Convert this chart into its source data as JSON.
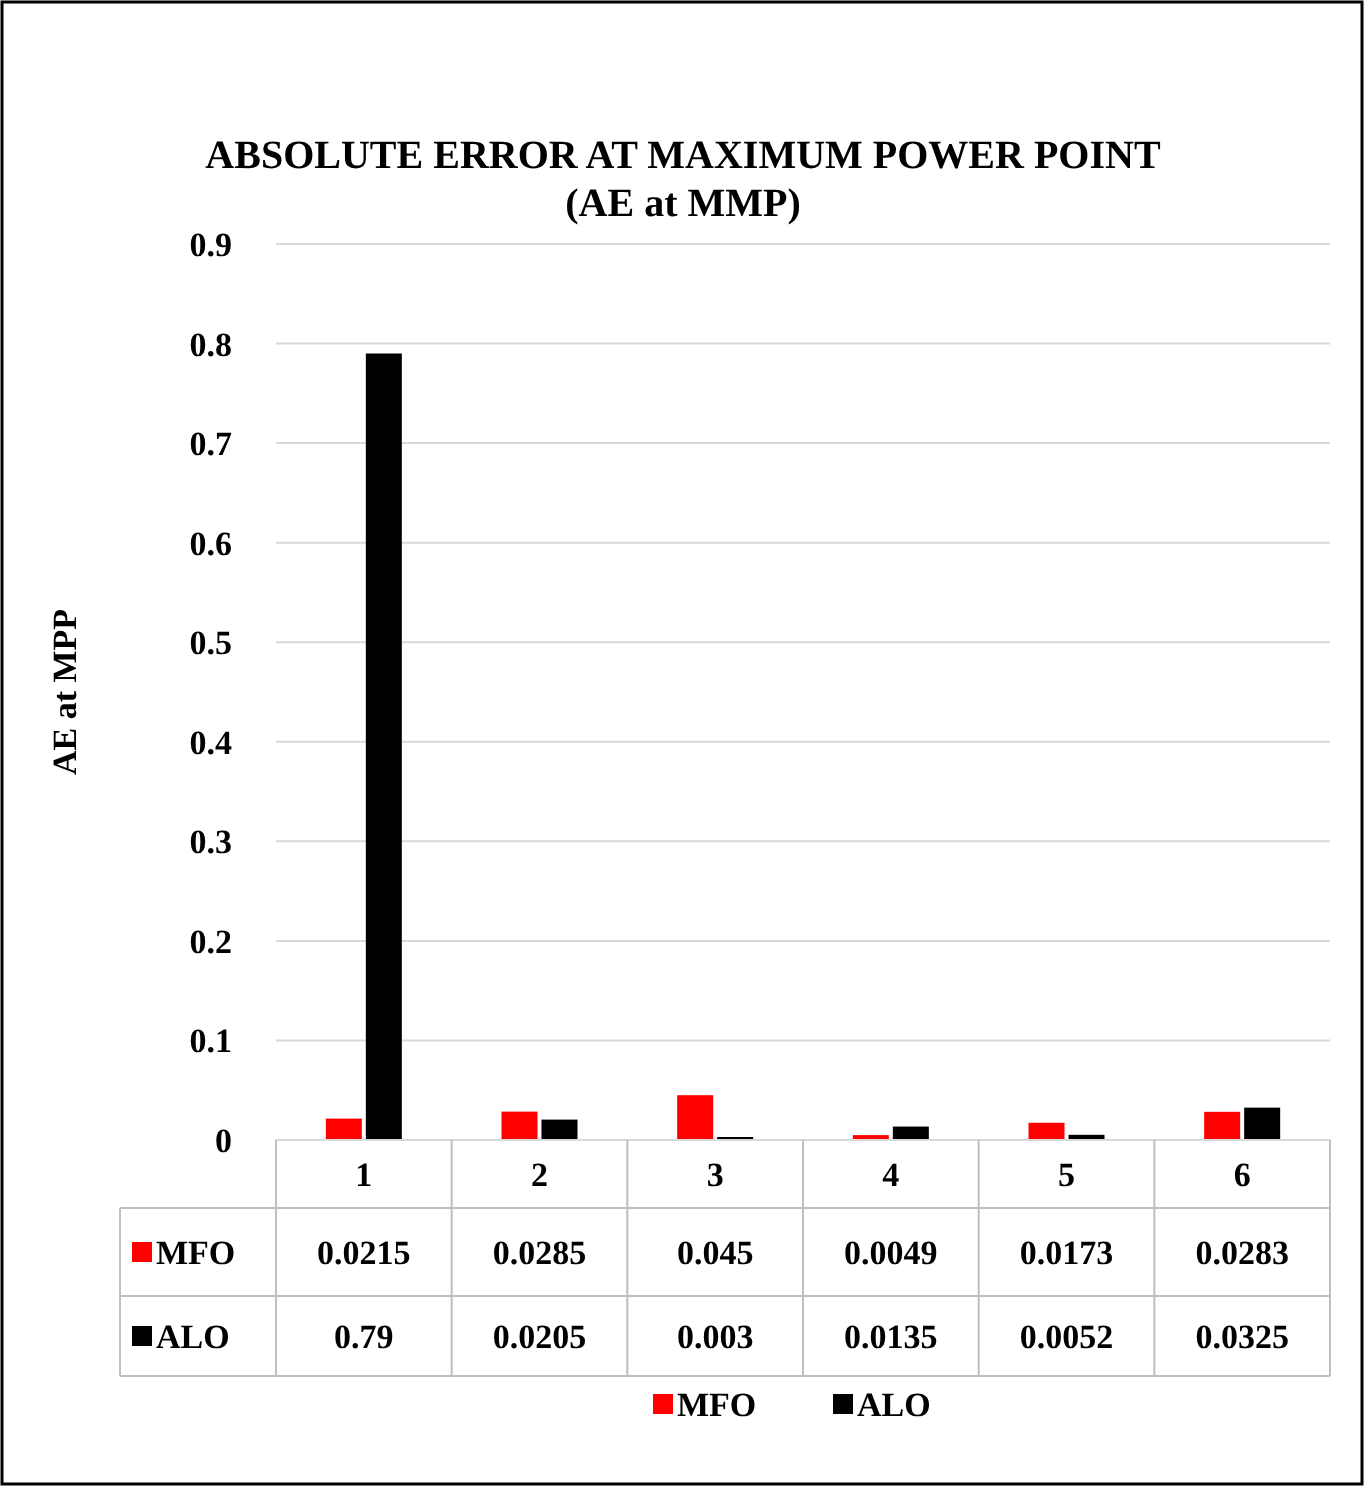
{
  "chart_data": {
    "type": "bar",
    "title": "ABSOLUTE ERROR AT MAXIMUM POWER POINT (AE at MMP)",
    "ylabel": "AE at MPP",
    "categories": [
      "1",
      "2",
      "3",
      "4",
      "5",
      "6"
    ],
    "series": [
      {
        "name": "MFO",
        "color": "#ff0000",
        "values": [
          0.0215,
          0.0285,
          0.045,
          0.0049,
          0.0173,
          0.0283
        ]
      },
      {
        "name": "ALO",
        "color": "#000000",
        "values": [
          0.79,
          0.0205,
          0.003,
          0.0135,
          0.0052,
          0.0325
        ]
      }
    ],
    "ylim": [
      0,
      0.9
    ],
    "yticks": [
      0,
      0.1,
      0.2,
      0.3,
      0.4,
      0.5,
      0.6,
      0.7,
      0.8,
      0.9
    ],
    "grid": "y",
    "legend": "bottom",
    "data_labels": true
  }
}
